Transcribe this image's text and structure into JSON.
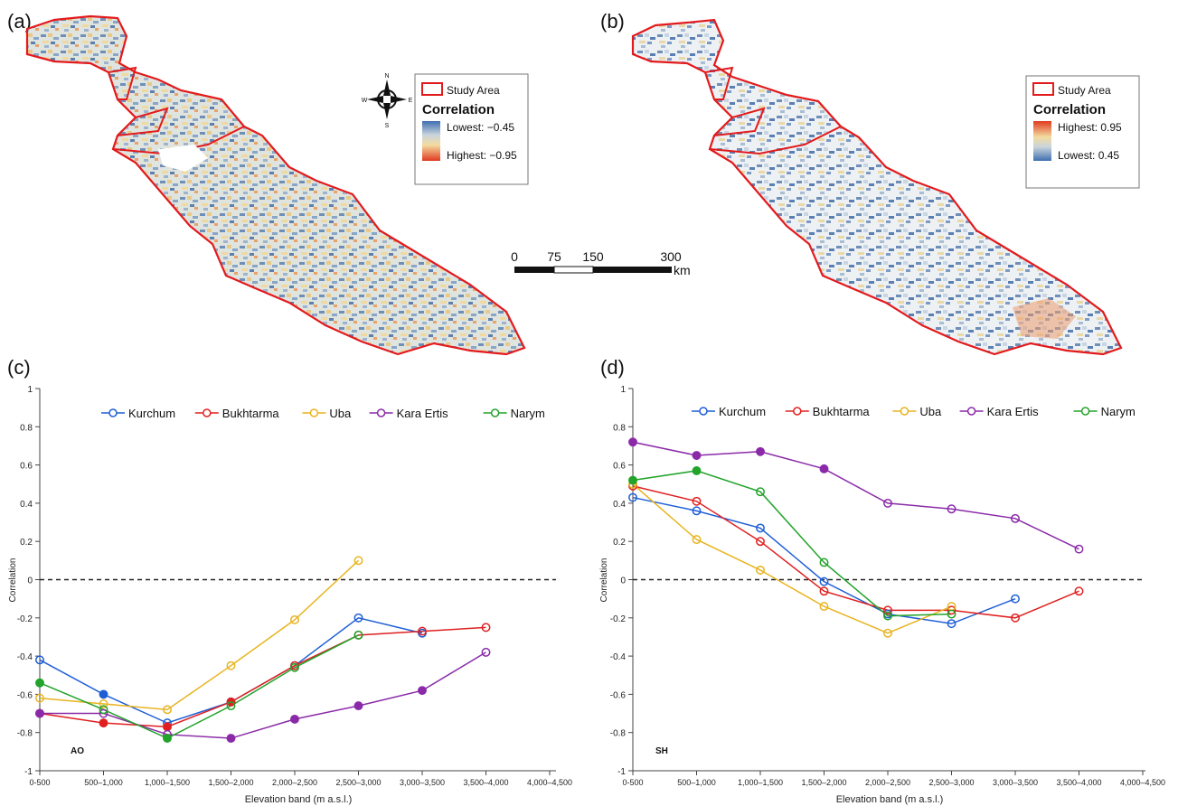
{
  "panel_labels": [
    "(a)",
    "(b)",
    "(c)",
    "(d)"
  ],
  "map_a": {
    "legend": {
      "study_area": "Study Area",
      "title": "Correlation",
      "low_label": "Lowest: −0.45",
      "high_label": "Highest: −0.95"
    },
    "compass": {
      "n": "N",
      "s": "S",
      "e": "E",
      "w": "W"
    }
  },
  "map_b": {
    "legend": {
      "study_area": "Study Area",
      "title": "Correlation",
      "high_label": "Highest: 0.95",
      "low_label": "Lowest: 0.45"
    }
  },
  "scale_bar": {
    "ticks": [
      "0",
      "75",
      "150",
      "300"
    ],
    "unit": "km"
  },
  "colors": {
    "boundary": "#e31a1c",
    "Kurchum": "#1f5fd6",
    "Bukhtarma": "#e02020",
    "Uba": "#e8b420",
    "Kara Ertis": "#8a2aa8",
    "Narym": "#22a32a"
  },
  "chart_data": [
    {
      "type": "line",
      "panel_tag": "AO",
      "xlabel": "Elevation band (m a.s.l.)",
      "ylabel": "Correlation",
      "ylim": [
        -1,
        1
      ],
      "yticks": [
        -1,
        -0.8,
        -0.6,
        -0.4,
        -0.2,
        0,
        0.2,
        0.4,
        0.6,
        0.8,
        1
      ],
      "categories": [
        "0-500",
        "500–1,000",
        "1,000–1,500",
        "1,500–2,000",
        "2,000–2,500",
        "2,500–3,000",
        "3,000–3,500",
        "3,500–4,000",
        "4,000–4,500"
      ],
      "reference_line": 0,
      "legend_position": "top",
      "series": [
        {
          "name": "Kurchum",
          "values": [
            -0.42,
            -0.6,
            -0.75,
            -0.64,
            -0.45,
            -0.2,
            -0.28,
            null,
            null
          ],
          "filled": [
            false,
            true,
            false,
            false,
            false,
            false,
            false,
            false,
            false
          ]
        },
        {
          "name": "Bukhtarma",
          "values": [
            -0.7,
            -0.75,
            -0.77,
            -0.64,
            -0.45,
            -0.29,
            -0.27,
            -0.25,
            null
          ],
          "filled": [
            false,
            true,
            true,
            true,
            false,
            false,
            false,
            false,
            false
          ]
        },
        {
          "name": "Uba",
          "values": [
            -0.62,
            -0.65,
            -0.68,
            -0.45,
            -0.21,
            0.1,
            null,
            null,
            null
          ],
          "filled": [
            false,
            false,
            false,
            false,
            false,
            false,
            false,
            false,
            false
          ]
        },
        {
          "name": "Kara Ertis",
          "values": [
            -0.7,
            -0.7,
            -0.81,
            -0.83,
            -0.73,
            -0.66,
            -0.58,
            -0.38,
            null
          ],
          "filled": [
            true,
            false,
            false,
            true,
            true,
            true,
            true,
            false,
            false
          ]
        },
        {
          "name": "Narym",
          "values": [
            -0.54,
            -0.68,
            -0.83,
            -0.66,
            -0.46,
            -0.29,
            null,
            null,
            null
          ],
          "filled": [
            true,
            false,
            true,
            false,
            false,
            false,
            false,
            false,
            false
          ]
        }
      ]
    },
    {
      "type": "line",
      "panel_tag": "SH",
      "xlabel": "Elevation band (m a.s.l.)",
      "ylabel": "Correlation",
      "ylim": [
        -1,
        1
      ],
      "yticks": [
        -1,
        -0.8,
        -0.6,
        -0.4,
        -0.2,
        0,
        0.2,
        0.4,
        0.6,
        0.8,
        1
      ],
      "categories": [
        "0-500",
        "500–1,000",
        "1,000–1,500",
        "1,500–2,000",
        "2,000–2,500",
        "2,500–3,000",
        "3,000–3,500",
        "3,500–4,000",
        "4,000–4,500"
      ],
      "reference_line": 0,
      "legend_position": "top",
      "series": [
        {
          "name": "Kurchum",
          "values": [
            0.43,
            0.36,
            0.27,
            -0.01,
            -0.18,
            -0.23,
            -0.1,
            null,
            null
          ],
          "filled": [
            false,
            false,
            false,
            false,
            false,
            false,
            false,
            false,
            false
          ]
        },
        {
          "name": "Bukhtarma",
          "values": [
            0.49,
            0.41,
            0.2,
            -0.06,
            -0.16,
            -0.16,
            -0.2,
            -0.06,
            null
          ],
          "filled": [
            false,
            false,
            false,
            false,
            false,
            false,
            false,
            false,
            false
          ]
        },
        {
          "name": "Uba",
          "values": [
            0.5,
            0.21,
            0.05,
            -0.14,
            -0.28,
            -0.14,
            null,
            null,
            null
          ],
          "filled": [
            false,
            false,
            false,
            false,
            false,
            false,
            false,
            false,
            false
          ]
        },
        {
          "name": "Kara Ertis",
          "values": [
            0.72,
            0.65,
            0.67,
            0.58,
            0.4,
            0.37,
            0.32,
            0.16,
            null
          ],
          "filled": [
            true,
            true,
            true,
            true,
            false,
            false,
            false,
            false,
            false
          ]
        },
        {
          "name": "Narym",
          "values": [
            0.52,
            0.57,
            0.46,
            0.09,
            -0.19,
            -0.18,
            null,
            null,
            null
          ],
          "filled": [
            true,
            true,
            false,
            false,
            false,
            false,
            false,
            false,
            false
          ]
        }
      ]
    }
  ]
}
